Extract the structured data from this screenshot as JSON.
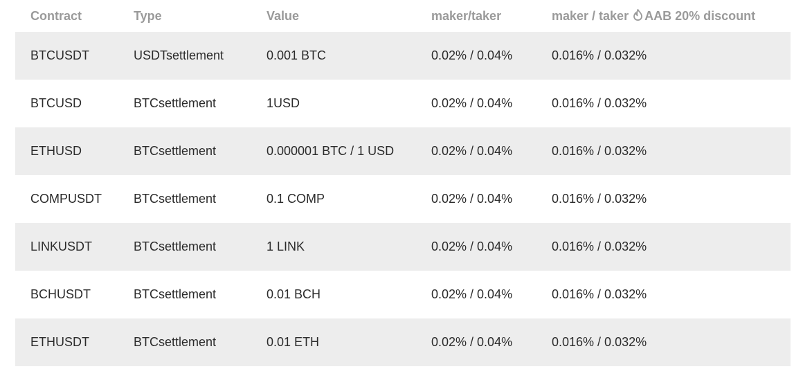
{
  "table": {
    "headers": {
      "contract": "Contract",
      "type": "Type",
      "value": "Value",
      "maker_taker": "maker/taker",
      "discount_prefix": "maker / taker",
      "discount_suffix": "AAB 20% discount"
    },
    "discount_icon": "flame-icon",
    "rows": [
      {
        "contract": "BTCUSDT",
        "type": "USDTsettlement",
        "value": "0.001 BTC",
        "fee": "0.02% / 0.04%",
        "discount_fee": "0.016% / 0.032%"
      },
      {
        "contract": "BTCUSD",
        "type": "BTCsettlement",
        "value": "1USD",
        "fee": "0.02% / 0.04%",
        "discount_fee": "0.016% / 0.032%"
      },
      {
        "contract": "ETHUSD",
        "type": "BTCsettlement",
        "value": "0.000001 BTC / 1 USD",
        "fee": "0.02% / 0.04%",
        "discount_fee": "0.016% / 0.032%"
      },
      {
        "contract": "COMPUSDT",
        "type": "BTCsettlement",
        "value": "0.1 COMP",
        "fee": "0.02% / 0.04%",
        "discount_fee": "0.016% / 0.032%"
      },
      {
        "contract": "LINKUSDT",
        "type": "BTCsettlement",
        "value": "1 LINK",
        "fee": "0.02% / 0.04%",
        "discount_fee": "0.016% / 0.032%"
      },
      {
        "contract": "BCHUSDT",
        "type": "BTCsettlement",
        "value": "0.01 BCH",
        "fee": "0.02% / 0.04%",
        "discount_fee": "0.016% / 0.032%"
      },
      {
        "contract": "ETHUSDT",
        "type": "BTCsettlement",
        "value": "0.01 ETH",
        "fee": "0.02% / 0.04%",
        "discount_fee": "0.016% / 0.032%"
      }
    ],
    "colors": {
      "header_text": "#9a9a9a",
      "body_text": "#2b2b2b",
      "shaded_row": "#ededed"
    }
  }
}
